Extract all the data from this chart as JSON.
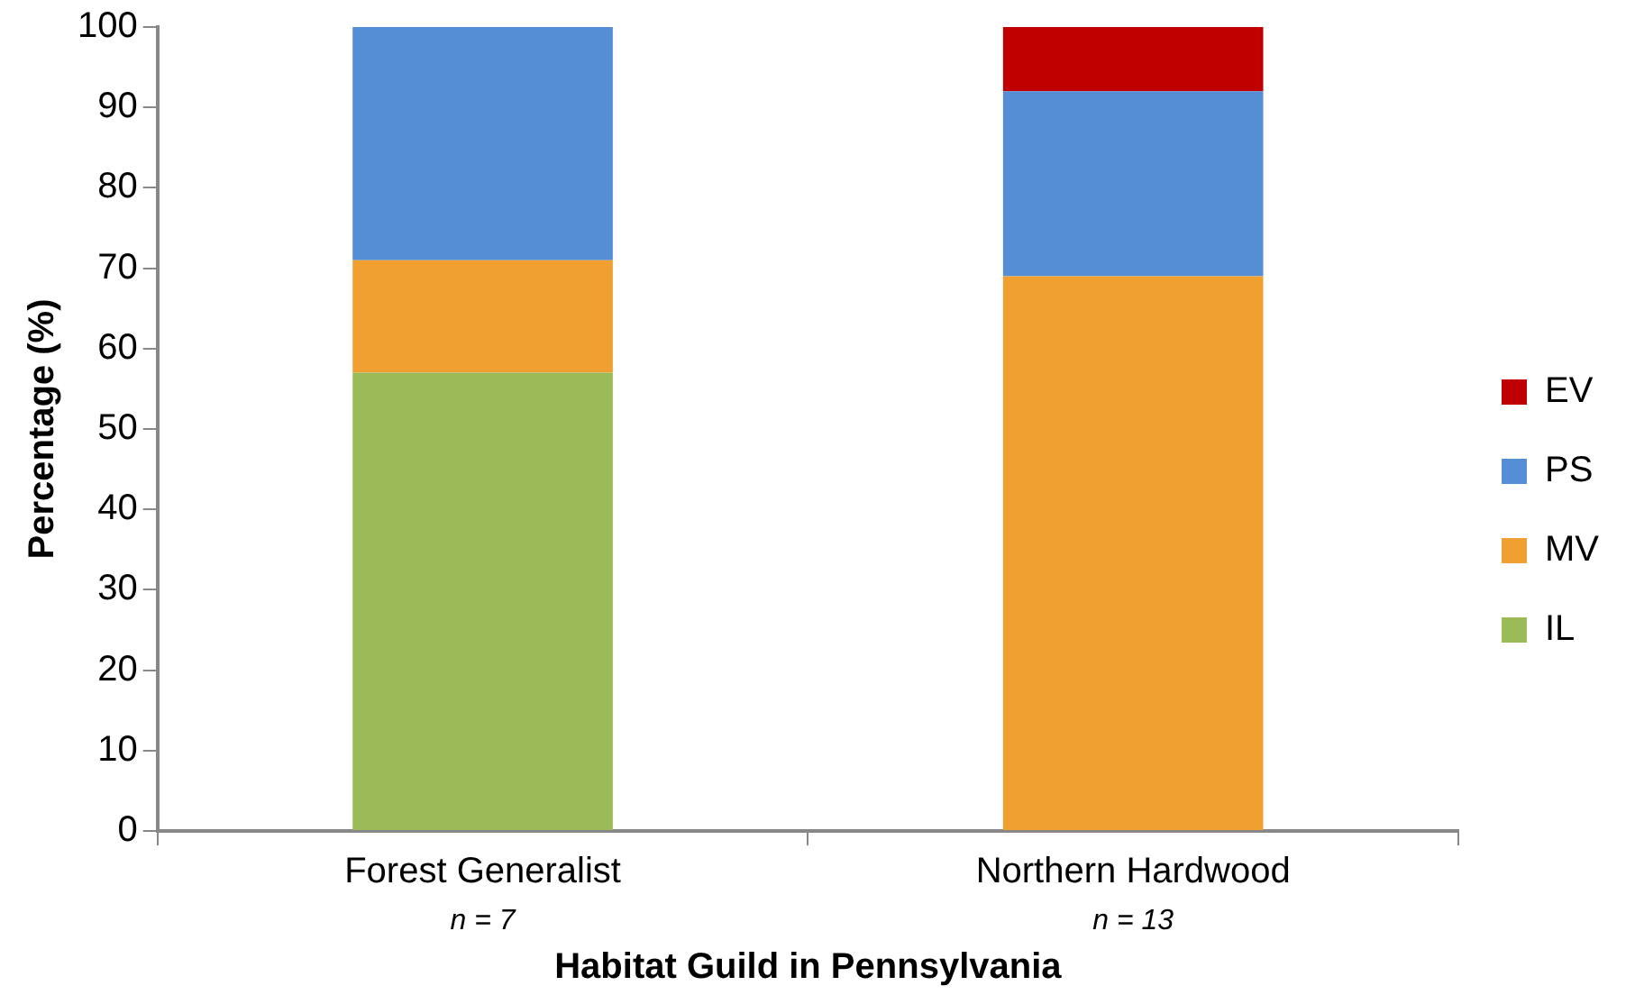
{
  "chart_data": {
    "type": "bar",
    "stacked": true,
    "xlabel": "Habitat Guild in Pennsylvania",
    "ylabel": "Percentage (%)",
    "categories": [
      "Forest Generalist",
      "Northern Hardwood"
    ],
    "series": [
      {
        "name": "IL",
        "color": "#9bbb59",
        "values": [
          57,
          0
        ]
      },
      {
        "name": "MV",
        "color": "#f0a030",
        "values": [
          14,
          69
        ]
      },
      {
        "name": "PS",
        "color": "#558ed5",
        "values": [
          29,
          23
        ]
      },
      {
        "name": "EV",
        "color": "#c00000",
        "values": [
          0,
          8
        ]
      }
    ],
    "ylim": [
      0,
      100
    ],
    "yticks": [
      0,
      10,
      20,
      30,
      40,
      50,
      60,
      70,
      80,
      90,
      100
    ],
    "grid": false,
    "legend": "right",
    "annotations": [
      "n = 7",
      "n = 13"
    ]
  }
}
